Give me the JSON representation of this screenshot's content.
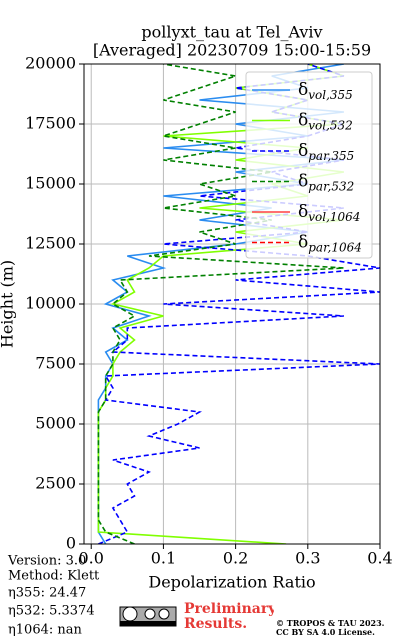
{
  "chart_data": {
    "type": "line",
    "title": "pollyxt_tau at Tel_Aviv",
    "subtitle": "[Averaged] 20230709 15:00-15:59",
    "x_label": "Depolarization Ratio",
    "y_label": "Height (m)",
    "y": [
      0,
      500,
      1000,
      1500,
      2000,
      2500,
      3000,
      3500,
      4000,
      4500,
      5000,
      5500,
      6000,
      6500,
      7000,
      7500,
      8000,
      8500,
      9000,
      9500,
      10000,
      10500,
      11000,
      11500,
      12000,
      12500,
      13000,
      13500,
      14000,
      14500,
      15000,
      15500,
      16000,
      16500,
      17000,
      17500,
      18000,
      18500,
      19000,
      19500,
      20000
    ],
    "series": [
      {
        "name": "δvol,355",
        "color": "#2a8cf0",
        "dash": false,
        "values": [
          0.02,
          0.01,
          0.01,
          0.01,
          0.01,
          0.01,
          0.01,
          0.01,
          0.01,
          0.01,
          0.01,
          0.01,
          0.01,
          0.02,
          0.02,
          0.03,
          0.02,
          0.05,
          0.03,
          0.08,
          0.02,
          0.05,
          0.03,
          0.1,
          0.05,
          0.2,
          0.3,
          0.15,
          0.25,
          0.1,
          0.3,
          0.2,
          0.35,
          0.1,
          0.3,
          0.2,
          0.35,
          0.15,
          0.3,
          0.25,
          0.35
        ]
      },
      {
        "name": "δvol,532",
        "color": "#80ff00",
        "dash": false,
        "values": [
          0.27,
          0.01,
          0.01,
          0.01,
          0.01,
          0.01,
          0.01,
          0.01,
          0.01,
          0.01,
          0.01,
          0.01,
          0.02,
          0.02,
          0.03,
          0.03,
          0.04,
          0.06,
          0.04,
          0.1,
          0.03,
          0.06,
          0.05,
          0.08,
          0.1,
          0.3,
          0.2,
          0.35,
          0.15,
          0.3,
          0.25,
          0.35,
          0.2,
          0.3,
          0.1,
          0.35,
          0.25,
          0.3,
          0.2,
          0.35,
          0.3
        ]
      },
      {
        "name": "δpar,355",
        "color": "#0000ff",
        "dash": true,
        "values": [
          0.01,
          0.05,
          0.04,
          0.03,
          0.06,
          0.05,
          0.08,
          0.03,
          0.15,
          0.08,
          0.12,
          0.15,
          0.02,
          0.03,
          0.02,
          0.4,
          0.03,
          0.05,
          0.05,
          0.35,
          0.1,
          0.4,
          0.2,
          0.4,
          0.3,
          0.1,
          0.3,
          0.2,
          0.35,
          0.15,
          0.3,
          0.25,
          0.35,
          0.2,
          0.3,
          0.35,
          0.25,
          0.3,
          0.2,
          0.35,
          0.3
        ]
      },
      {
        "name": "δpar,532",
        "color": "#008000",
        "dash": true,
        "values": [
          0.06,
          0.02,
          0.01,
          0.01,
          0.01,
          0.01,
          0.01,
          0.01,
          0.01,
          0.01,
          0.01,
          0.01,
          0.02,
          0.02,
          0.02,
          0.03,
          0.03,
          0.04,
          0.03,
          0.06,
          0.03,
          0.05,
          0.04,
          0.35,
          0.08,
          0.2,
          0.15,
          0.25,
          0.1,
          0.2,
          0.15,
          0.25,
          0.1,
          0.2,
          0.1,
          0.15,
          0.2,
          0.1,
          0.15,
          0.2,
          0.1
        ]
      },
      {
        "name": "δvol,1064",
        "color": "#ff4040",
        "dash": false,
        "values": [
          null,
          null,
          null,
          null,
          null,
          null,
          null,
          null,
          null,
          null,
          null,
          null,
          null,
          null,
          null,
          null,
          null,
          null,
          null,
          null,
          null,
          null,
          null,
          null,
          null,
          null,
          null,
          null,
          null,
          null,
          null,
          null,
          null,
          null,
          null,
          null,
          null,
          null,
          null,
          null,
          null
        ]
      },
      {
        "name": "δpar,1064",
        "color": "#ff0000",
        "dash": true,
        "values": [
          null,
          null,
          null,
          null,
          null,
          null,
          null,
          null,
          null,
          null,
          null,
          null,
          null,
          null,
          null,
          null,
          null,
          null,
          null,
          null,
          null,
          null,
          null,
          null,
          null,
          null,
          null,
          null,
          null,
          null,
          null,
          null,
          null,
          null,
          null,
          null,
          null,
          null,
          null,
          null,
          null
        ]
      }
    ],
    "xlim": [
      -0.01,
      0.4
    ],
    "xticks": [
      {
        "value": 0,
        "label": "0.0"
      },
      0.1,
      0.2,
      0.3,
      0.4
    ],
    "ylim": [
      0,
      20000
    ],
    "yticks": [
      0,
      2500,
      5000,
      7500,
      10000,
      12500,
      15000,
      17500,
      20000
    ],
    "grid": true,
    "legend": "upper right",
    "info": [
      "Version: 3.0",
      "Method: Klett",
      "η355:  24.47",
      "η532: 5.3374",
      "η1064:    nan"
    ],
    "badge": "Preliminary Results.",
    "copyright": [
      "© TROPOS & TAU 2023.",
      "CC BY SA 4.0 License."
    ]
  }
}
